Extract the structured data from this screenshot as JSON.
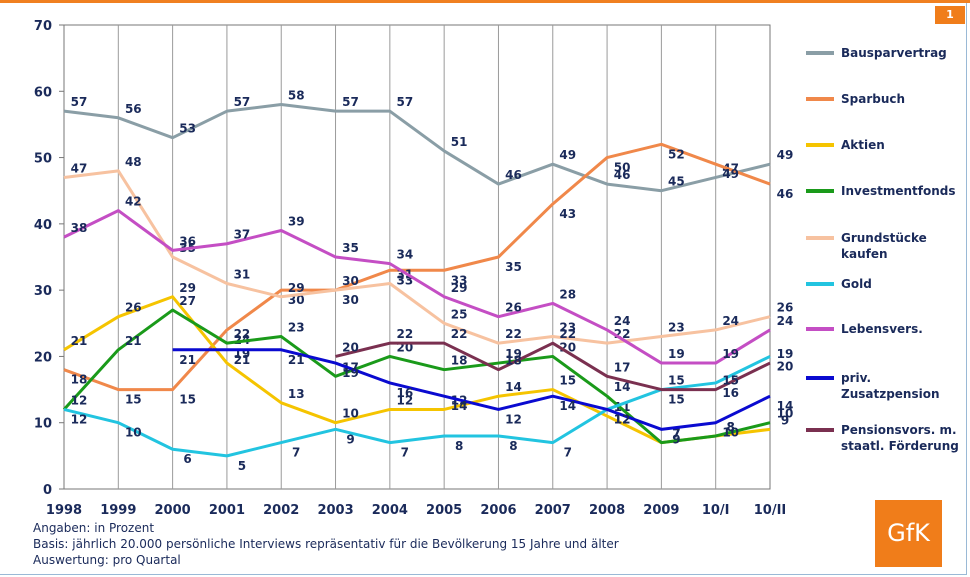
{
  "page_number": "1",
  "logo_text": "GfK",
  "footer": {
    "line1": "Angaben: in  Prozent",
    "line2": "Basis: jährlich 20.000 persönliche Interviews repräsentativ für die Bevölkerung 15 Jahre und älter",
    "line3": "Auswertung: pro Quartal"
  },
  "chart_data": {
    "type": "line",
    "categories": [
      "1998",
      "1999",
      "2000",
      "2001",
      "2002",
      "2003",
      "2004",
      "2005",
      "2006",
      "2007",
      "2008",
      "2009",
      "10/I",
      "10/II"
    ],
    "ylim": [
      0,
      70
    ],
    "yticks": [
      0,
      10,
      20,
      30,
      40,
      50,
      60,
      70
    ],
    "grid": "vertical",
    "legend_position": "right",
    "series": [
      {
        "name": "Bausparvertrag",
        "color": "#8a9ea6",
        "values": [
          57,
          56,
          53,
          57,
          58,
          57,
          57,
          51,
          46,
          49,
          46,
          45,
          47,
          49
        ]
      },
      {
        "name": "Sparbuch",
        "color": "#f0884a",
        "values": [
          18,
          15,
          15,
          24,
          30,
          30,
          33,
          33,
          35,
          43,
          50,
          52,
          49,
          46
        ]
      },
      {
        "name": "Aktien",
        "color": "#f5c400",
        "values": [
          21,
          26,
          29,
          19,
          13,
          10,
          12,
          12,
          14,
          15,
          11,
          7,
          8,
          9
        ]
      },
      {
        "name": "Investmentfonds",
        "color": "#1a9a1a",
        "values": [
          12,
          21,
          27,
          22,
          23,
          17,
          20,
          18,
          19,
          20,
          14,
          7,
          8,
          10
        ]
      },
      {
        "name": "Grundstücke kaufen",
        "color": "#f7c2a0",
        "values": [
          47,
          48,
          35,
          31,
          29,
          30,
          31,
          25,
          22,
          23,
          22,
          23,
          24,
          26
        ]
      },
      {
        "name": "Gold",
        "color": "#22c4e0",
        "values": [
          12,
          10,
          6,
          5,
          7,
          9,
          7,
          8,
          8,
          7,
          12,
          15,
          16,
          20
        ]
      },
      {
        "name": "Lebensvers.",
        "color": "#c44ec4",
        "values": [
          38,
          42,
          36,
          37,
          39,
          35,
          34,
          29,
          26,
          28,
          24,
          19,
          19,
          24
        ]
      },
      {
        "name": "priv. Zusatzpension",
        "color": "#0a0ad0",
        "values": [
          null,
          null,
          21,
          21,
          21,
          19,
          16,
          14,
          12,
          14,
          12,
          9,
          10,
          14
        ]
      },
      {
        "name": "Pensionsvors. m. staatl. Förderung",
        "color": "#7a3050",
        "values": [
          null,
          null,
          null,
          null,
          null,
          20,
          22,
          22,
          18,
          22,
          17,
          15,
          15,
          19
        ]
      }
    ],
    "legend_labels": [
      [
        "Bausparvertrag"
      ],
      [
        "Sparbuch"
      ],
      [
        "Aktien"
      ],
      [
        "Investmentfonds"
      ],
      [
        "Grundstücke",
        "kaufen"
      ],
      [
        "Gold"
      ],
      [
        "Lebensvers."
      ],
      [
        "priv.",
        "Zusatzpension"
      ],
      [
        "Pensionsvors. m.",
        "staatl. Förderung"
      ]
    ]
  }
}
